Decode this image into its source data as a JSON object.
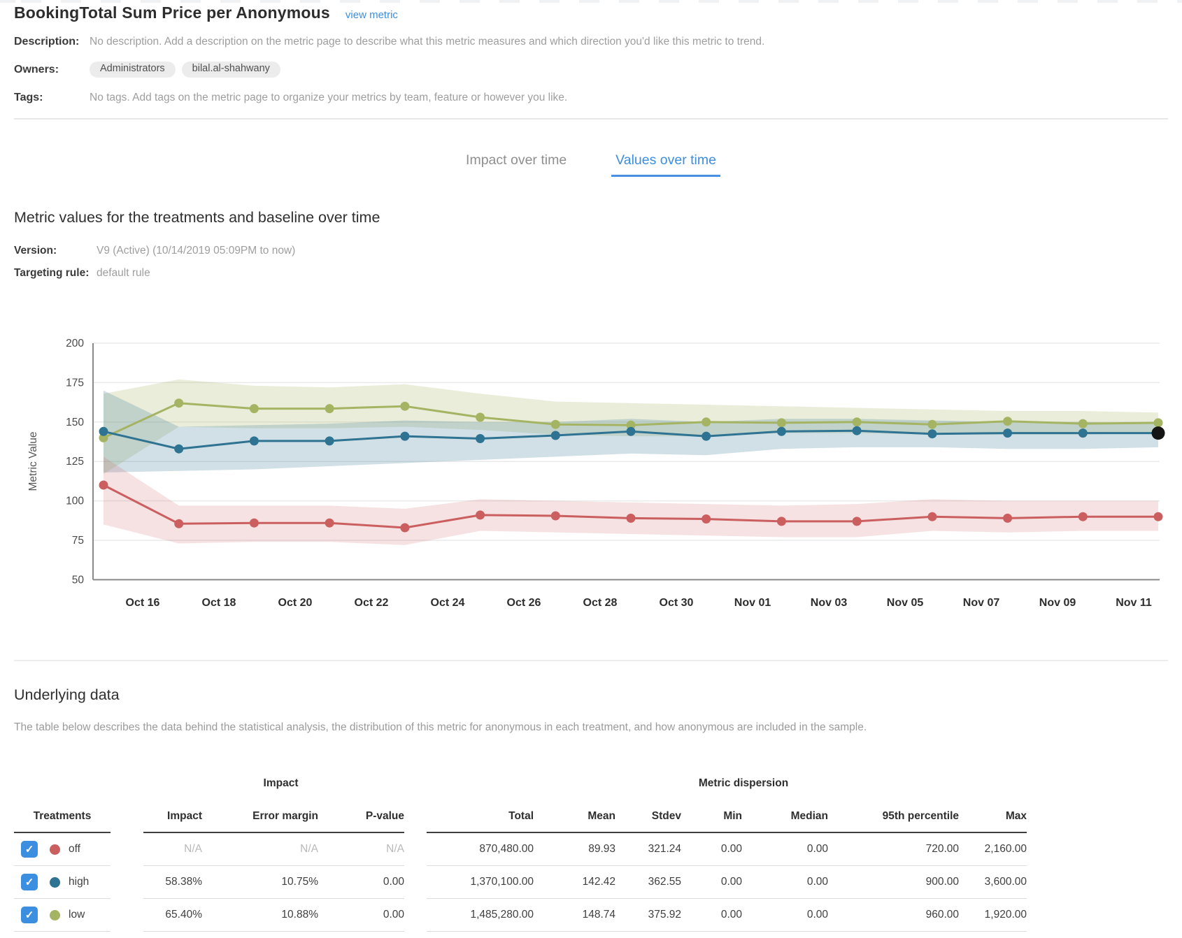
{
  "page": {
    "title": "BookingTotal Sum Price per Anonymous",
    "view_metric_link": "view metric",
    "meta": {
      "description_label": "Description:",
      "description": "No description. Add a description on the metric page to describe what this metric measures and which direction you'd like this metric to trend.",
      "owners_label": "Owners:",
      "owners": [
        "Administrators",
        "bilal.al-shahwany"
      ],
      "tags_label": "Tags:",
      "tags": "No tags. Add tags on the metric page to organize your metrics by team, feature or however you like."
    },
    "tabs": [
      {
        "label": "Impact over time",
        "active": false
      },
      {
        "label": "Values over time",
        "active": true
      }
    ],
    "section": {
      "heading": "Metric values for the treatments and baseline over time",
      "version_label": "Version:",
      "version": "V9 (Active) (10/14/2019 05:09PM to now)",
      "targeting_label": "Targeting rule:",
      "targeting": "default rule"
    },
    "underlying": {
      "heading": "Underlying data",
      "description": "The table below describes the data behind the statistical analysis, the distribution of this metric for anonymous in each treatment, and how anonymous are included in the sample."
    }
  },
  "chart_data": {
    "type": "line",
    "title": "",
    "xlabel": "",
    "ylabel": "Metric Value",
    "ylim": [
      50,
      200
    ],
    "yticks": [
      50,
      75,
      100,
      125,
      150,
      175,
      200
    ],
    "grid": true,
    "x_labels": [
      "Oct 16",
      "Oct 18",
      "Oct 20",
      "Oct 22",
      "Oct 24",
      "Oct 26",
      "Oct 28",
      "Oct 30",
      "Nov 01",
      "Nov 03",
      "Nov 05",
      "Nov 07",
      "Nov 09",
      "Nov 11"
    ],
    "series": [
      {
        "name": "low",
        "color": "#a5b462",
        "band_color": "rgba(166,181,99,0.24)",
        "values": [
          140,
          162,
          158.5,
          158.5,
          160,
          153,
          148.5,
          148,
          150,
          149.5,
          150,
          148.5,
          150.5,
          149,
          149.5
        ],
        "band_upper": [
          168,
          177,
          173,
          172,
          174,
          168,
          163,
          162,
          161,
          160,
          159,
          158,
          157,
          157,
          156
        ],
        "band_lower": [
          117,
          147,
          146,
          146,
          147,
          145,
          142,
          141,
          141,
          143,
          143,
          142,
          142,
          142,
          143
        ],
        "last_point_black": false
      },
      {
        "name": "high",
        "color": "#2e7391",
        "band_color": "rgba(46,115,145,0.22)",
        "values": [
          144,
          133,
          138,
          138,
          141,
          139.5,
          141.5,
          144,
          141,
          144,
          144.5,
          142.5,
          143,
          143,
          143
        ],
        "band_upper": [
          170,
          147,
          148,
          149,
          151,
          150,
          150,
          152,
          150,
          152,
          152,
          151,
          150,
          150,
          149
        ],
        "band_lower": [
          118,
          119,
          120,
          122,
          124,
          126,
          128,
          130,
          129,
          133,
          134,
          134,
          133,
          133,
          134
        ],
        "last_point_black": true
      },
      {
        "name": "off",
        "color": "#cb5f5f",
        "band_color": "rgba(203,95,95,0.18)",
        "values": [
          110,
          85.5,
          86,
          86,
          83,
          91,
          90.5,
          89,
          88.5,
          87,
          87,
          90,
          89,
          90,
          90
        ],
        "band_upper": [
          128,
          97,
          97,
          97,
          95,
          101,
          100,
          99,
          98,
          97,
          98,
          101,
          100,
          100,
          100
        ],
        "band_lower": [
          85,
          73,
          74,
          74,
          72,
          81,
          80,
          79,
          78,
          77,
          77,
          81,
          80,
          81,
          81
        ],
        "last_point_black": false
      }
    ]
  },
  "table": {
    "group_headers": {
      "impact": "Impact",
      "dispersion": "Metric dispersion"
    },
    "columns": {
      "treatments": "Treatments",
      "impact": "Impact",
      "error_margin": "Error margin",
      "p_value": "P-value",
      "total": "Total",
      "mean": "Mean",
      "stdev": "Stdev",
      "min": "Min",
      "median": "Median",
      "p95": "95th percentile",
      "max": "Max"
    },
    "rows": [
      {
        "label": "off",
        "checked": true,
        "color": "#cb5f5f",
        "impact_muted": true,
        "impact": "N/A",
        "error_margin": "N/A",
        "p_value": "N/A",
        "total": "870,480.00",
        "mean": "89.93",
        "stdev": "321.24",
        "min": "0.00",
        "median": "0.00",
        "p95": "720.00",
        "max": "2,160.00"
      },
      {
        "label": "high",
        "checked": true,
        "color": "#2e7391",
        "impact_muted": false,
        "impact": "58.38%",
        "error_margin": "10.75%",
        "p_value": "0.00",
        "total": "1,370,100.00",
        "mean": "142.42",
        "stdev": "362.55",
        "min": "0.00",
        "median": "0.00",
        "p95": "900.00",
        "max": "3,600.00"
      },
      {
        "label": "low",
        "checked": true,
        "color": "#a5b462",
        "impact_muted": false,
        "impact": "65.40%",
        "error_margin": "10.88%",
        "p_value": "0.00",
        "total": "1,485,280.00",
        "mean": "148.74",
        "stdev": "375.92",
        "min": "0.00",
        "median": "0.00",
        "p95": "960.00",
        "max": "1,920.00"
      }
    ]
  }
}
